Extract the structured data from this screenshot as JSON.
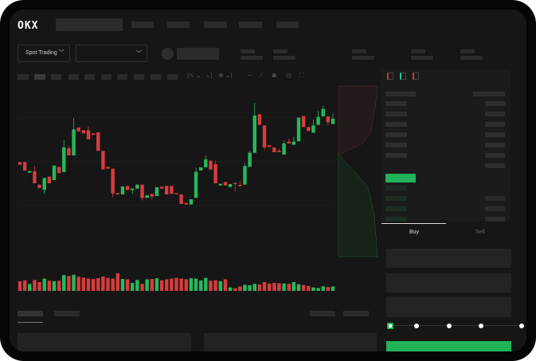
{
  "header": {
    "logo": "OKX",
    "nav_placeholders": 5
  },
  "market_bar": {
    "mode_label": "Spot Trading",
    "pair_dropdown_value": ""
  },
  "toolbar": {
    "icons": [
      "candle-style-icon",
      "indicator-icon",
      "compare-icon",
      "line-tool-icon",
      "ruler-icon",
      "camera-icon",
      "settings-icon",
      "fullscreen-icon"
    ]
  },
  "order_book": {
    "view_icons": [
      "book-both-icon",
      "book-bids-icon",
      "book-asks-icon"
    ]
  },
  "trade_form": {
    "tabs": [
      {
        "label": "Buy",
        "active": true
      },
      {
        "label": "Sell",
        "active": false
      }
    ],
    "slider_percent": 0,
    "slider_steps": [
      0,
      25,
      50,
      75,
      100
    ]
  },
  "colors": {
    "up": "#26b95c",
    "down": "#d83c3c",
    "buy_button": "#22b359",
    "background": "#161616"
  },
  "chart_data": {
    "type": "candlestick",
    "title": "",
    "grid": true,
    "ylim": [
      106,
      150
    ],
    "candles": [
      [
        125,
        125,
        124,
        124
      ],
      [
        125,
        125,
        121.8,
        121.8
      ],
      [
        121,
        121.6,
        121,
        121.6
      ],
      [
        121.5,
        123.5,
        117,
        117
      ],
      [
        116.5,
        116.5,
        115.2,
        115.2
      ],
      [
        114.5,
        119,
        113,
        119
      ],
      [
        119.5,
        119.5,
        117,
        117
      ],
      [
        118.2,
        123.7,
        118.2,
        123.7
      ],
      [
        123.2,
        123.2,
        120.8,
        120.8
      ],
      [
        121.2,
        133.2,
        121.2,
        130.5
      ],
      [
        130.2,
        131,
        127.5,
        127.5
      ],
      [
        127.5,
        141.5,
        127.5,
        137.3
      ],
      [
        138,
        138,
        136.5,
        136.5
      ],
      [
        137,
        137,
        135.8,
        135.8
      ],
      [
        137,
        138.5,
        133.5,
        133.5
      ],
      [
        135.8,
        135.8,
        135.2,
        135.2
      ],
      [
        136.2,
        136.2,
        129.2,
        129.2
      ],
      [
        129.2,
        129.2,
        122.2,
        122.2
      ],
      [
        123.2,
        123.2,
        122.5,
        122.5
      ],
      [
        122.5,
        122.5,
        111.8,
        113.2
      ],
      [
        113.3,
        113.3,
        112.8,
        112.8
      ],
      [
        112.8,
        115.8,
        112.8,
        115.8
      ],
      [
        116,
        116,
        114.5,
        114.5
      ],
      [
        114.4,
        115,
        113,
        115
      ],
      [
        115,
        116.5,
        115,
        116.5
      ],
      [
        116.5,
        116.5,
        110.5,
        111.5
      ],
      [
        111.5,
        112.5,
        111.5,
        112.5
      ],
      [
        113,
        113,
        111,
        112
      ],
      [
        112.2,
        115.5,
        112.2,
        115.5
      ],
      [
        115.7,
        115.7,
        115,
        115
      ],
      [
        116,
        116,
        112.8,
        112.8
      ],
      [
        116,
        116,
        113,
        113
      ],
      [
        113.3,
        113.3,
        113,
        113
      ],
      [
        112.8,
        112.8,
        109.2,
        109.2
      ],
      [
        109.6,
        109.6,
        109,
        109
      ],
      [
        109,
        111,
        109,
        111
      ],
      [
        111.5,
        122.8,
        111.5,
        121.3
      ],
      [
        121.8,
        123,
        121.8,
        123
      ],
      [
        123,
        127.5,
        123,
        126
      ],
      [
        125.5,
        125.5,
        122.2,
        122.2
      ],
      [
        124.2,
        125.5,
        117,
        117
      ],
      [
        116.2,
        116.8,
        116.2,
        116.8
      ],
      [
        117.5,
        117.5,
        116.2,
        116.2
      ],
      [
        115.6,
        116.7,
        115.6,
        116.7
      ],
      [
        117.2,
        117.2,
        114,
        116.8
      ],
      [
        116.4,
        118,
        116,
        116
      ],
      [
        116.5,
        124.5,
        116.5,
        123.5
      ],
      [
        123.2,
        129.2,
        123.2,
        128.5
      ],
      [
        128.5,
        147.2,
        128.5,
        142.5
      ],
      [
        143,
        143,
        139,
        139
      ],
      [
        138.8,
        138.8,
        129.5,
        130.5
      ],
      [
        131.3,
        131.3,
        130.7,
        130.7
      ],
      [
        130.5,
        130.5,
        128.7,
        128.7
      ],
      [
        129.2,
        130,
        128.7,
        128.7
      ],
      [
        127.8,
        133,
        127.8,
        132
      ],
      [
        132.7,
        133.8,
        132,
        132
      ],
      [
        131.5,
        134.5,
        131.5,
        132.7
      ],
      [
        132.8,
        141.7,
        132.8,
        141.7
      ],
      [
        142.3,
        142.3,
        138.2,
        138.2
      ],
      [
        138.2,
        138.2,
        136.7,
        136.7
      ],
      [
        136,
        141,
        136,
        138.8
      ],
      [
        139,
        144.2,
        139,
        142
      ],
      [
        142.2,
        146.2,
        142.2,
        145
      ],
      [
        142.2,
        142.2,
        139,
        140
      ],
      [
        139.3,
        143.2,
        139.3,
        141.3
      ]
    ],
    "volumes": [
      55,
      60,
      40,
      62,
      50,
      70,
      58,
      55,
      58,
      90,
      85,
      92,
      80,
      75,
      70,
      68,
      72,
      82,
      74,
      70,
      100,
      68,
      66,
      45,
      62,
      40,
      66,
      68,
      72,
      60,
      66,
      70,
      74,
      70,
      66,
      72,
      70,
      60,
      74,
      58,
      60,
      55,
      66,
      20,
      15,
      25,
      35,
      32,
      40,
      36,
      50,
      42,
      46,
      44,
      42,
      40,
      50,
      38,
      34,
      28,
      20,
      16,
      26,
      22,
      25
    ],
    "depth": {
      "asks_fraction_visible": true,
      "bids_fraction_visible": true
    }
  }
}
